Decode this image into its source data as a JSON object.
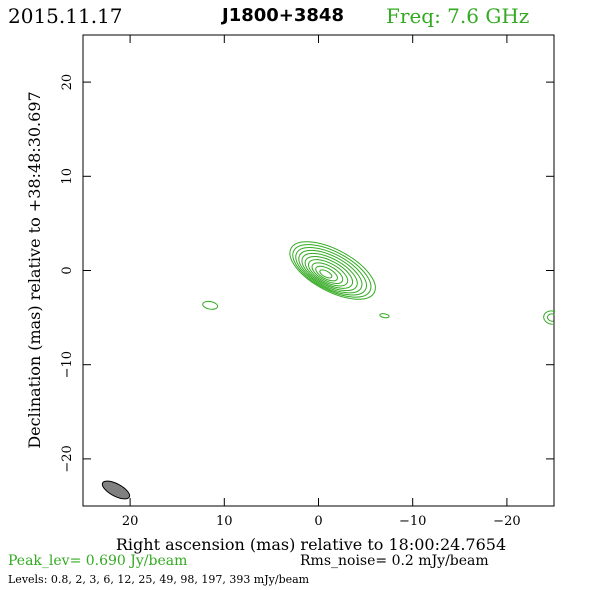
{
  "header": {
    "date": "2015.11.17",
    "source": "J1800+3848",
    "freq": "Freq: 7.6 GHz"
  },
  "footer": {
    "peak": "Peak_lev=  0.690 Jy/beam",
    "rms": "Rms_noise=  0.2 mJy/beam",
    "levels": "Levels: 0.8,   2,   3,   6,  12,  25,  49,  98, 197, 393 mJy/beam"
  },
  "colors": {
    "contour": "#33aa22",
    "beam_fill": "#808080",
    "axes": "#000000"
  },
  "chart_data": {
    "type": "contour",
    "xlabel": "Right ascension (mas) relative to 18:00:24.7654",
    "ylabel": "Declination (mas) relative to +38:48:30.697",
    "xlim": [
      25,
      -25
    ],
    "ylim": [
      -25,
      25
    ],
    "x_ticks": [
      20,
      10,
      0,
      -10,
      -20
    ],
    "x_tick_labels": [
      "20",
      "10",
      "0",
      "−10",
      "−20"
    ],
    "y_ticks": [
      20,
      10,
      0,
      -10,
      -20
    ],
    "y_tick_labels": [
      "20",
      "10",
      "0",
      "−10",
      "−20"
    ],
    "contour_levels_mJy": [
      0.8,
      2,
      3,
      6,
      12,
      25,
      49,
      98,
      197,
      393
    ],
    "peak_Jy_per_beam": 0.69,
    "rms_mJy_per_beam": 0.2,
    "main_component": {
      "x": -1.5,
      "y": 0.0,
      "outer_semi_major": 5.0,
      "outer_semi_minor": 2.2,
      "pa_deg": 118
    },
    "secondary_components": [
      {
        "x": 11.5,
        "y": -3.7,
        "semi_major": 0.8,
        "semi_minor": 0.4,
        "pa_deg": 100
      },
      {
        "x": -7.0,
        "y": -4.8,
        "semi_major": 0.5,
        "semi_minor": 0.2,
        "pa_deg": 100
      },
      {
        "x": -24.8,
        "y": -5.0,
        "semi_major": 0.9,
        "semi_minor": 0.7,
        "pa_deg": 100
      }
    ],
    "beam": {
      "x": 21.5,
      "y": -23.3,
      "semi_major": 1.6,
      "semi_minor": 0.65,
      "pa_deg": 118
    }
  }
}
